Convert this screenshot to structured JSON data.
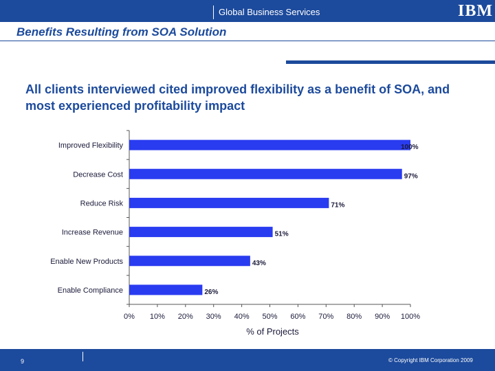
{
  "header": {
    "group_name": "Global Business Services",
    "logo_text": "IBM"
  },
  "slide": {
    "title": "Benefits Resulting from SOA Solution",
    "subtitle": "All clients interviewed cited improved flexibility as a benefit of SOA, and most experienced profitability impact"
  },
  "chart_data": {
    "type": "bar",
    "orientation": "horizontal",
    "categories": [
      "Improved Flexibility",
      "Decrease Cost",
      "Reduce Risk",
      "Increase Revenue",
      "Enable New Products",
      "Enable Compliance"
    ],
    "values": [
      100,
      97,
      71,
      51,
      43,
      26
    ],
    "value_labels": [
      "100%",
      "97%",
      "71%",
      "51%",
      "43%",
      "26%"
    ],
    "xlabel": "% of Projects",
    "xlim": [
      0,
      100
    ],
    "xticks": [
      "0%",
      "10%",
      "20%",
      "30%",
      "40%",
      "50%",
      "60%",
      "70%",
      "80%",
      "90%",
      "100%"
    ],
    "grid": false,
    "bar_color": "#2a3cf0"
  },
  "footer": {
    "page_number": "9",
    "copyright": "© Copyright IBM Corporation 2009"
  }
}
